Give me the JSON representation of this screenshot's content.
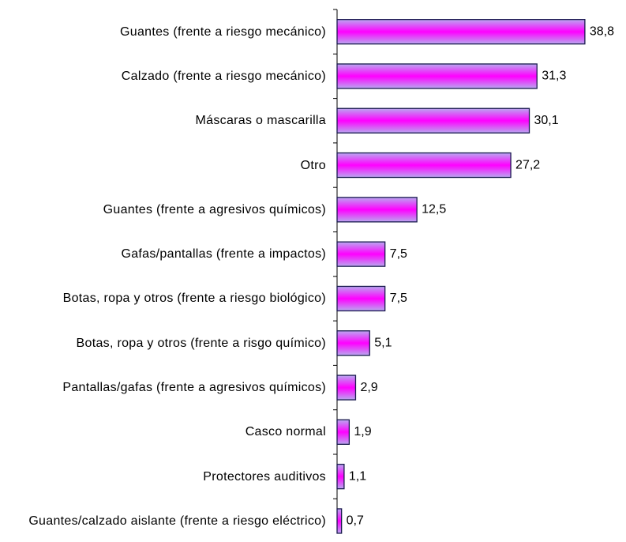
{
  "chart_data": {
    "type": "bar",
    "orientation": "horizontal",
    "categories": [
      "Guantes (frente a riesgo mecánico)",
      "Calzado (frente a riesgo mecánico)",
      "Máscaras o mascarilla",
      "Otro",
      "Guantes (frente a agresivos químicos)",
      "Gafas/pantallas (frente a impactos)",
      "Botas, ropa y otros (frente a riesgo biológico)",
      "Botas, ropa y otros (frente a risgo químico)",
      "Pantallas/gafas (frente a agresivos químicos)",
      "Casco normal",
      "Protectores auditivos",
      "Guantes/calzado aislante (frente a riesgo eléctrico)"
    ],
    "values": [
      38.8,
      31.3,
      30.1,
      27.2,
      12.5,
      7.5,
      7.5,
      5.1,
      2.9,
      1.9,
      1.1,
      0.7
    ],
    "value_labels": [
      "38,8",
      "31,3",
      "30,1",
      "27,2",
      "12,5",
      "7,5",
      "7,5",
      "5,1",
      "2,9",
      "1,9",
      "1,1",
      "0,7"
    ],
    "color": "#ff00ff",
    "edge_color": "#1a1a4e"
  }
}
